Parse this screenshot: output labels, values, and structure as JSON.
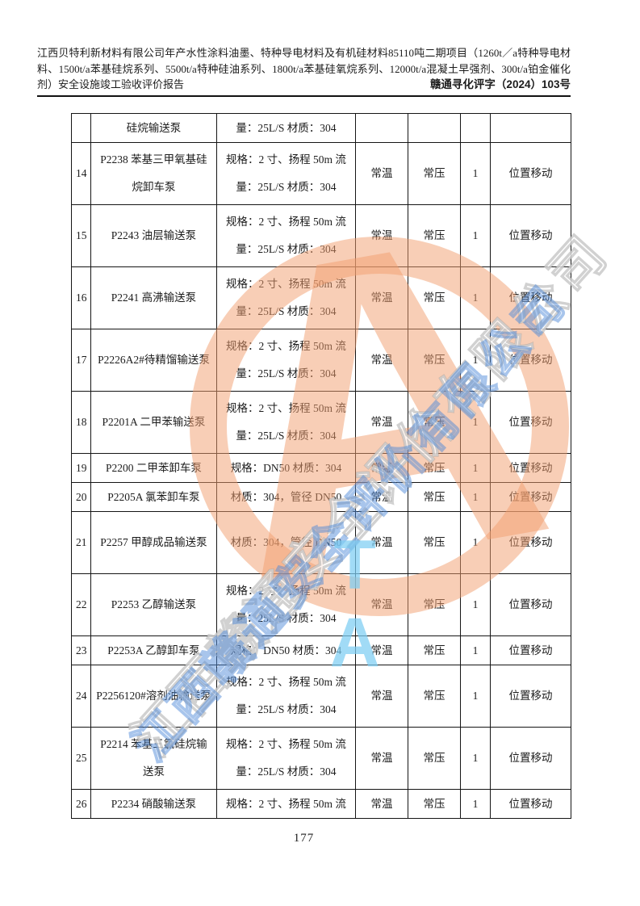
{
  "header": {
    "title": "江西贝特利新材料有限公司年产水性涂料油墨、特种导电材料及有机硅材料85110吨二期项目（1260t／a特种导电材料、1500t/a苯基硅烷系列、5500t/a特种硅油系列、1800t/a苯基硅氧烷系列、12000t/a混凝土早强剂、300t/a铂金催化剂）安全设施竣工验收评价报告",
    "doc_number": "赣通寻化评字（2024）103号"
  },
  "table": {
    "rows": [
      {
        "no": "",
        "name": "硅烷输送泵",
        "spec": "量：25L/S 材质：304",
        "temp": "",
        "press": "",
        "qty": "",
        "loc": "",
        "tall": false
      },
      {
        "no": "14",
        "name": "P2238 苯基三甲氧基硅烷卸车泵",
        "spec": "规格：2 寸、扬程 50m 流量：25L/S 材质：304",
        "temp": "常温",
        "press": "常压",
        "qty": "1",
        "loc": "位置移动",
        "tall": true
      },
      {
        "no": "15",
        "name": "P2243 油层输送泵",
        "spec": "规格：2 寸、扬程 50m 流量：25L/S 材质：304",
        "temp": "常温",
        "press": "常压",
        "qty": "1",
        "loc": "位置移动",
        "tall": true
      },
      {
        "no": "16",
        "name": "P2241 高沸输送泵",
        "spec": "规格：2 寸、扬程 50m 流量：25L/S 材质：304",
        "temp": "常温",
        "press": "常压",
        "qty": "1",
        "loc": "位置移动",
        "tall": true
      },
      {
        "no": "17",
        "name": "P2226A2#待精馏输送泵",
        "spec": "规格：2 寸、扬程 50m 流量：25L/S 材质：304",
        "temp": "常温",
        "press": "常压",
        "qty": "1",
        "loc": "位置移动",
        "tall": true
      },
      {
        "no": "18",
        "name": "P2201A 二甲苯输送泵",
        "spec": "规格：2 寸、扬程 50m 流量：25L/S 材质：304",
        "temp": "常温",
        "press": "常压",
        "qty": "1",
        "loc": "位置移动",
        "tall": true
      },
      {
        "no": "19",
        "name": "P2200 二甲苯卸车泵",
        "spec": "规格：DN50 材质：304",
        "temp": "常温",
        "press": "常压",
        "qty": "1",
        "loc": "位置移动",
        "tall": false
      },
      {
        "no": "20",
        "name": "P2205A 氯苯卸车泵",
        "spec": "材质：304，管径 DN50",
        "temp": "常温",
        "press": "常压",
        "qty": "1",
        "loc": "位置移动",
        "tall": false
      },
      {
        "no": "21",
        "name": "P2257 甲醇成品输送泵",
        "spec": "材质：304，管径 DN50",
        "temp": "常温",
        "press": "常压",
        "qty": "1",
        "loc": "位置移动",
        "tall": true
      },
      {
        "no": "22",
        "name": "P2253 乙醇输送泵",
        "spec": "规格：2 寸、扬程 50m 流量：25L/S 材质：304",
        "temp": "常温",
        "press": "常压",
        "qty": "1",
        "loc": "位置移动",
        "tall": true
      },
      {
        "no": "23",
        "name": "P2253A 乙醇卸车泵",
        "spec": "规格：DN50 材质：304",
        "temp": "常温",
        "press": "常压",
        "qty": "1",
        "loc": "位置移动",
        "tall": false
      },
      {
        "no": "24",
        "name": "P2256120#溶剂油输送泵",
        "spec": "规格：2 寸、扬程 50m 流量：25L/S 材质：304",
        "temp": "常温",
        "press": "常压",
        "qty": "1",
        "loc": "位置移动",
        "tall": true
      },
      {
        "no": "25",
        "name": "P2214 苯基三氯硅烷输送泵",
        "spec": "规格：2 寸、扬程 50m 流量：25L/S 材质：304",
        "temp": "常温",
        "press": "常压",
        "qty": "1",
        "loc": "位置移动",
        "tall": true
      },
      {
        "no": "26",
        "name": "P2234 硝酸输送泵",
        "spec": "规格：2 寸、扬程 50m 流",
        "temp": "常温",
        "press": "常压",
        "qty": "1",
        "loc": "位置移动",
        "tall": false
      }
    ]
  },
  "watermark": {
    "stamp_letter": "A",
    "ta_text": "TA",
    "company_text": "江西赣通安全评价有限公司",
    "ring_color": "#F29E6E",
    "blue_outline_color": "#4A86D8",
    "light_blue_color": "#7DCDF2"
  },
  "footer": {
    "page_number": "177"
  }
}
